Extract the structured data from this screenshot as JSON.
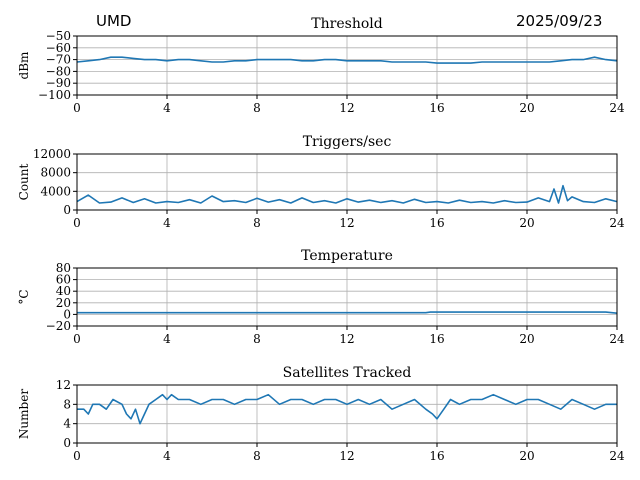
{
  "header": {
    "left": "UMD",
    "center": "Threshold",
    "right": "2025/09/23"
  },
  "colors": {
    "line": "#1f77b4",
    "grid": "#b0b0b0",
    "axis": "#000000"
  },
  "chart_data": [
    {
      "type": "line",
      "title": "Threshold",
      "ylabel": "dBm",
      "xlim": [
        0,
        24
      ],
      "ylim": [
        -100,
        -50
      ],
      "xticks": [
        "0",
        "4",
        "8",
        "12",
        "16",
        "20",
        "24"
      ],
      "yticks": [
        "−50",
        "−60",
        "−70",
        "−80",
        "−90",
        "−100"
      ],
      "ytick_values": [
        -50,
        -60,
        -70,
        -80,
        -90,
        -100
      ],
      "grid": true,
      "series": [
        {
          "x": [
            0,
            0.5,
            1,
            1.5,
            2,
            2.5,
            3,
            3.5,
            4,
            4.5,
            5,
            5.5,
            6,
            6.5,
            7,
            7.5,
            8,
            8.5,
            9,
            9.5,
            10,
            10.5,
            11,
            11.5,
            12,
            12.5,
            13,
            13.5,
            14,
            14.5,
            15,
            15.5,
            16,
            16.5,
            17,
            17.5,
            18,
            18.5,
            19,
            19.5,
            20,
            20.5,
            21,
            21.5,
            22,
            22.5,
            23,
            23.5,
            24
          ],
          "y": [
            -72,
            -71,
            -70,
            -68,
            -68,
            -69,
            -70,
            -70,
            -71,
            -70,
            -70,
            -71,
            -72,
            -72,
            -71,
            -71,
            -70,
            -70,
            -70,
            -70,
            -71,
            -71,
            -70,
            -70,
            -71,
            -71,
            -71,
            -71,
            -72,
            -72,
            -72,
            -72,
            -73,
            -73,
            -73,
            -73,
            -72,
            -72,
            -72,
            -72,
            -72,
            -72,
            -72,
            -71,
            -70,
            -70,
            -68,
            -70,
            -71
          ]
        }
      ]
    },
    {
      "type": "line",
      "title": "Triggers/sec",
      "ylabel": "Count",
      "xlim": [
        0,
        24
      ],
      "ylim": [
        0,
        12000
      ],
      "xticks": [
        "0",
        "4",
        "8",
        "12",
        "16",
        "20",
        "24"
      ],
      "yticks": [
        "12000",
        "8000",
        "4000",
        "0"
      ],
      "ytick_values": [
        12000,
        8000,
        4000,
        0
      ],
      "grid": true,
      "series": [
        {
          "x": [
            0,
            0.5,
            1,
            1.5,
            2,
            2.5,
            3,
            3.5,
            4,
            4.5,
            5,
            5.5,
            6,
            6.5,
            7,
            7.5,
            8,
            8.5,
            9,
            9.5,
            10,
            10.5,
            11,
            11.5,
            12,
            12.5,
            13,
            13.5,
            14,
            14.5,
            15,
            15.5,
            16,
            16.5,
            17,
            17.5,
            18,
            18.5,
            19,
            19.5,
            20,
            20.5,
            21,
            21.2,
            21.4,
            21.6,
            21.8,
            22,
            22.5,
            23,
            23.5,
            24
          ],
          "y": [
            1800,
            3200,
            1500,
            1700,
            2600,
            1600,
            2400,
            1500,
            1800,
            1600,
            2200,
            1500,
            3000,
            1800,
            2000,
            1600,
            2500,
            1700,
            2200,
            1500,
            2600,
            1600,
            2000,
            1500,
            2400,
            1700,
            2100,
            1600,
            2000,
            1500,
            2300,
            1600,
            1800,
            1500,
            2100,
            1600,
            1800,
            1500,
            2000,
            1600,
            1700,
            2600,
            1800,
            4500,
            1500,
            5200,
            2000,
            2800,
            1800,
            1600,
            2400,
            1800
          ]
        }
      ]
    },
    {
      "type": "line",
      "title": "Temperature",
      "ylabel": "°C",
      "xlim": [
        0,
        24
      ],
      "ylim": [
        -20,
        80
      ],
      "xticks": [
        "0",
        "4",
        "8",
        "12",
        "16",
        "20",
        "24"
      ],
      "yticks": [
        "80",
        "60",
        "40",
        "20",
        "0",
        "−20"
      ],
      "ytick_values": [
        80,
        60,
        40,
        20,
        0,
        -20
      ],
      "grid": true,
      "series": [
        {
          "x": [
            0,
            4,
            8,
            12,
            15.5,
            15.7,
            16,
            20,
            23.5,
            24
          ],
          "y": [
            3,
            3,
            3,
            3,
            3,
            4,
            4,
            4,
            4,
            2
          ]
        }
      ]
    },
    {
      "type": "line",
      "title": "Satellites Tracked",
      "ylabel": "Number",
      "xlim": [
        0,
        24
      ],
      "ylim": [
        0,
        12
      ],
      "xticks": [
        "0",
        "4",
        "8",
        "12",
        "16",
        "20",
        "24"
      ],
      "yticks": [
        "12",
        "8",
        "4",
        "0"
      ],
      "ytick_values": [
        12,
        8,
        4,
        0
      ],
      "grid": true,
      "series": [
        {
          "x": [
            0,
            0.3,
            0.5,
            0.7,
            1,
            1.3,
            1.6,
            2,
            2.2,
            2.4,
            2.6,
            2.8,
            3,
            3.2,
            3.5,
            3.8,
            4,
            4.2,
            4.5,
            5,
            5.5,
            6,
            6.5,
            7,
            7.5,
            8,
            8.5,
            9,
            9.5,
            10,
            10.5,
            11,
            11.5,
            12,
            12.5,
            13,
            13.5,
            14,
            14.5,
            15,
            15.5,
            15.8,
            16,
            16.3,
            16.6,
            17,
            17.5,
            18,
            18.5,
            19,
            19.5,
            20,
            20.5,
            21,
            21.5,
            22,
            22.5,
            23,
            23.5,
            24
          ],
          "y": [
            7,
            7,
            6,
            8,
            8,
            7,
            9,
            8,
            6,
            5,
            7,
            4,
            6,
            8,
            9,
            10,
            9,
            10,
            9,
            9,
            8,
            9,
            9,
            8,
            9,
            9,
            10,
            8,
            9,
            9,
            8,
            9,
            9,
            8,
            9,
            8,
            9,
            7,
            8,
            9,
            7,
            6,
            5,
            7,
            9,
            8,
            9,
            9,
            10,
            9,
            8,
            9,
            9,
            8,
            7,
            9,
            8,
            7,
            8,
            8
          ]
        }
      ]
    }
  ]
}
